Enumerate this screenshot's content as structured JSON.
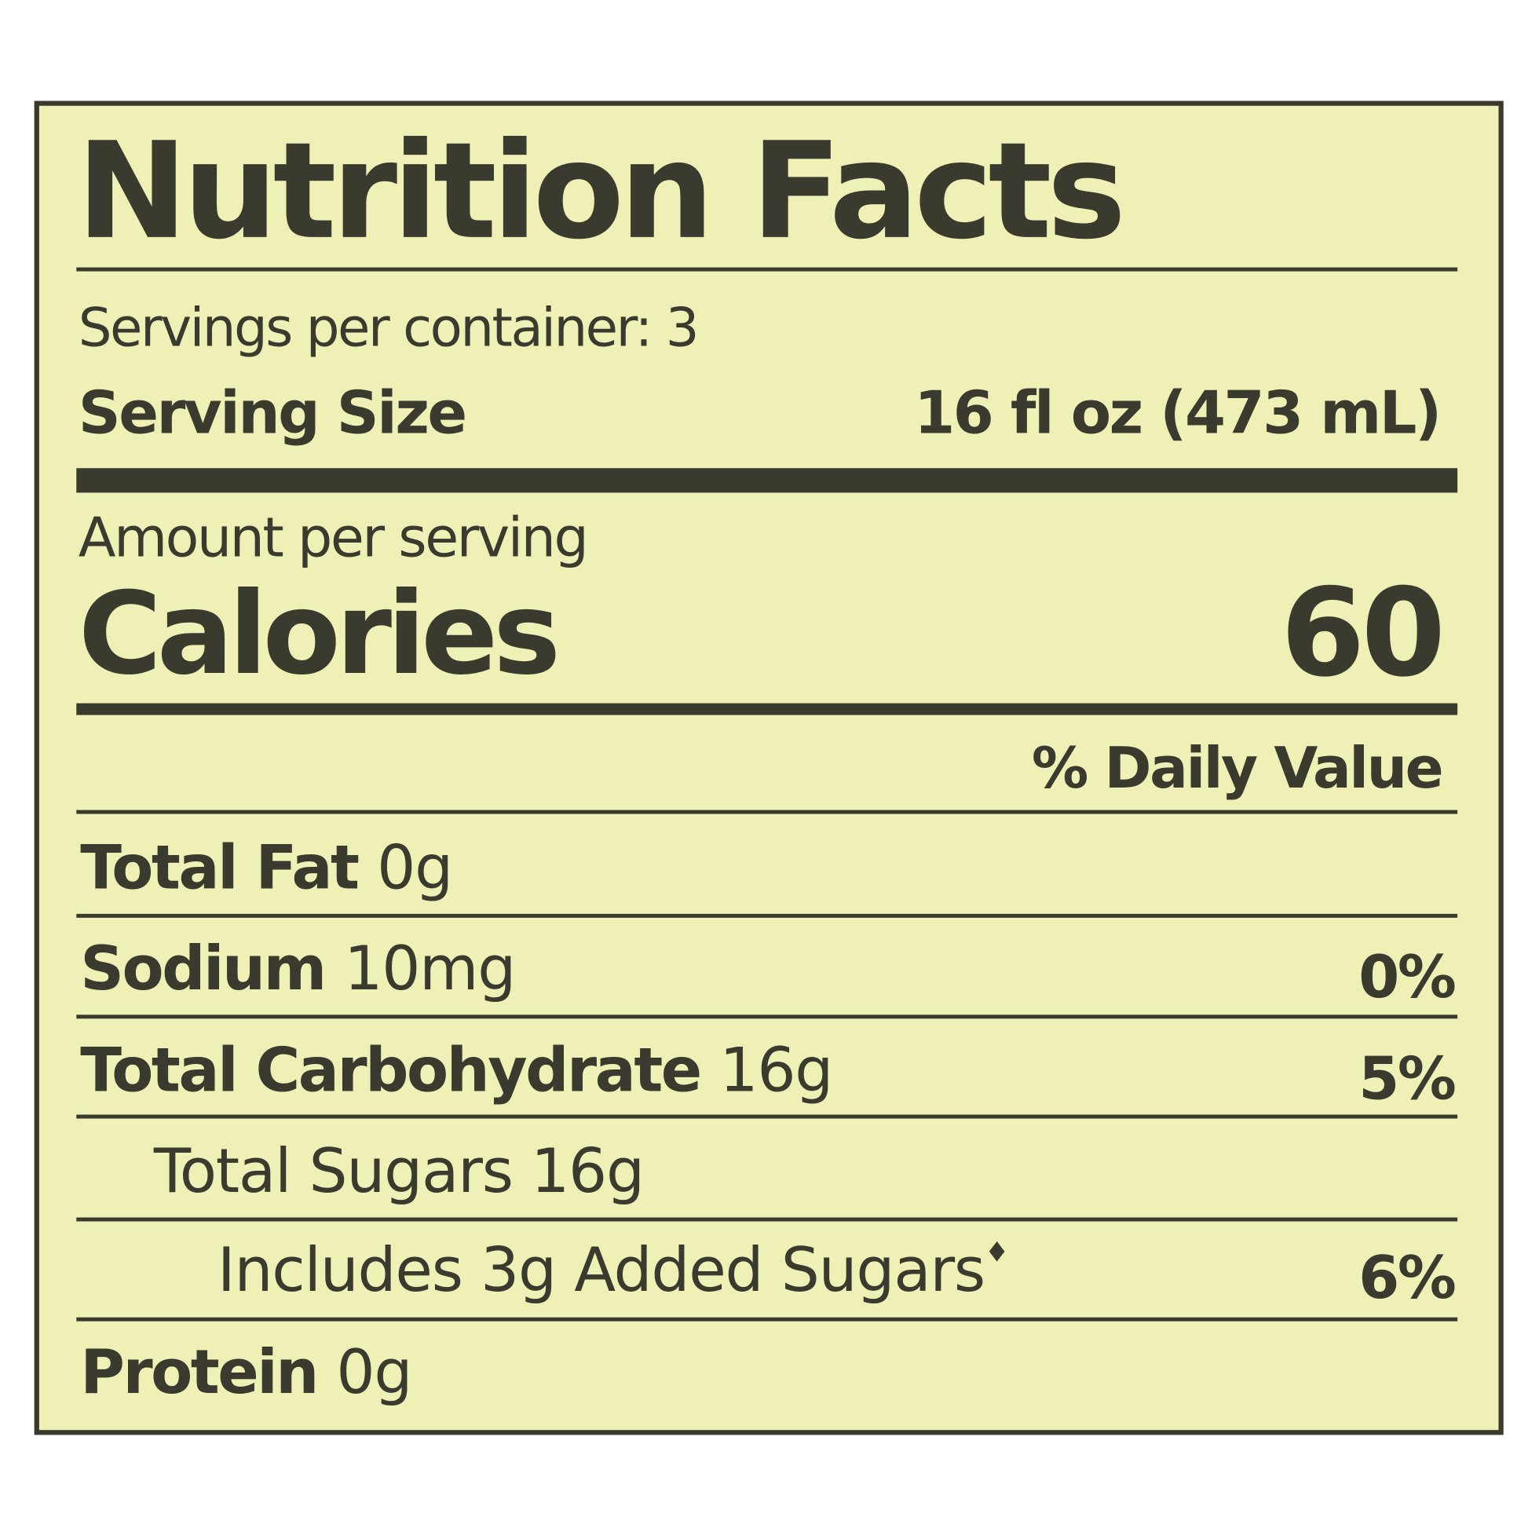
{
  "label": {
    "title": "Nutrition Facts",
    "servings_per_container": "Servings per container: 3",
    "serving_size_label": "Serving Size",
    "serving_size_value": "16 fl oz (473 mL)",
    "amount_per_serving": "Amount per serving",
    "calories_label": "Calories",
    "calories_value": "60",
    "daily_value_header": "% Daily Value",
    "nutrients": [
      {
        "name": "Total Fat",
        "amount": "0g",
        "dv": ""
      },
      {
        "name": "Sodium",
        "amount": "10mg",
        "dv": "0%"
      },
      {
        "name": "Total Carbohydrate",
        "amount": "16g",
        "dv": "5%"
      },
      {
        "name": "",
        "amount": "Total Sugars 16g",
        "dv": ""
      },
      {
        "name": "",
        "amount": "Includes 3g Added Sugars",
        "marker": "♦",
        "dv": "6%"
      },
      {
        "name": "Protein",
        "amount": "0g",
        "dv": ""
      }
    ]
  },
  "colors": {
    "background": "#eef0b6",
    "ink": "#3b3a2e"
  }
}
